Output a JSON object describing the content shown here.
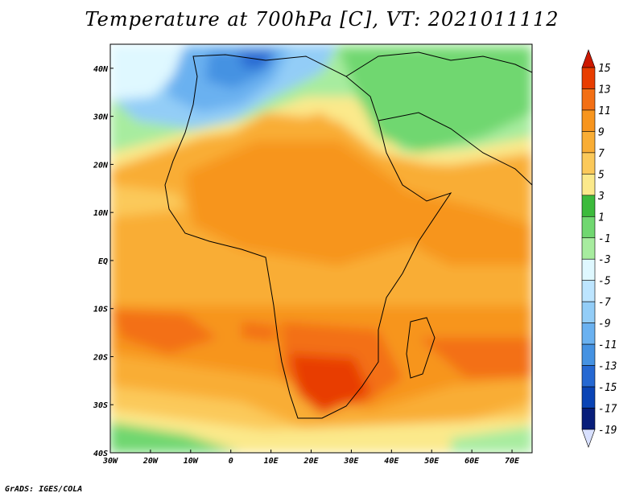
{
  "title": "Temperature at 700hPa [C], VT: 2021011112",
  "credit": "GrADS: IGES/COLA",
  "map": {
    "projection": "lat-lon",
    "lon_range": [
      -30,
      75
    ],
    "lat_range": [
      -40,
      45
    ],
    "lat_labels": [
      "40N",
      "30N",
      "20N",
      "10N",
      "EQ",
      "10S",
      "20S",
      "30S",
      "40S"
    ],
    "lat_values": [
      40,
      30,
      20,
      10,
      0,
      -10,
      -20,
      -30,
      -40
    ],
    "lon_labels": [
      "30W",
      "20W",
      "10W",
      "0",
      "10E",
      "20E",
      "30E",
      "40E",
      "50E",
      "60E",
      "70E"
    ],
    "lon_values": [
      -30,
      -20,
      -10,
      0,
      10,
      20,
      30,
      40,
      50,
      60,
      70
    ]
  },
  "colorbar": {
    "labels": [
      "15",
      "13",
      "11",
      "9",
      "7",
      "5",
      "3",
      "1",
      "-1",
      "-3",
      "-5",
      "-7",
      "-9",
      "-11",
      "-13",
      "-15",
      "-17",
      "-19"
    ],
    "colors": [
      "#cc1800",
      "#e83d00",
      "#f36f14",
      "#f7951e",
      "#f9ad35",
      "#fbc95a",
      "#fbe98b",
      "#3cba3c",
      "#70d770",
      "#a7ec9f",
      "#dff8ff",
      "#bde5ff",
      "#93cdf7",
      "#6ab1f0",
      "#4592e2",
      "#2568d2",
      "#0a44b5",
      "#081e7a",
      "#d8e0ff"
    ]
  }
}
